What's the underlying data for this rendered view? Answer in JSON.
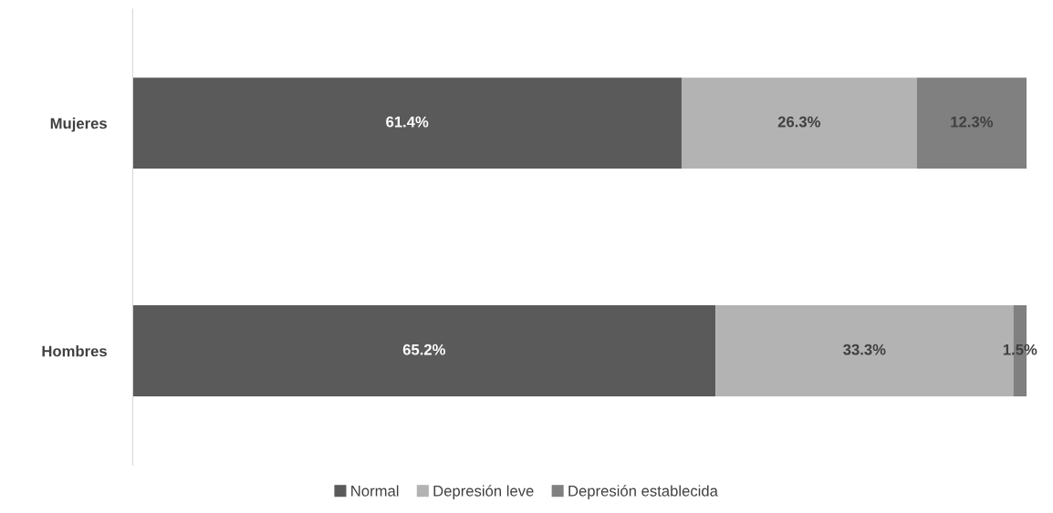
{
  "chart_data": {
    "type": "bar",
    "orientation": "horizontal",
    "stacked": true,
    "categories": [
      "Mujeres",
      "Hombres"
    ],
    "series": [
      {
        "name": "Normal",
        "color": "#5a5a5a",
        "values": [
          61.4,
          65.2
        ],
        "value_labels": [
          "61.4%",
          "65.2%"
        ]
      },
      {
        "name": "Depresión leve",
        "color": "#b3b3b3",
        "values": [
          26.3,
          33.3
        ],
        "value_labels": [
          "26.3%",
          "33.3%"
        ]
      },
      {
        "name": "Depresión establecida",
        "color": "#808080",
        "values": [
          12.3,
          1.5
        ],
        "value_labels": [
          "12.3%",
          "1.5%"
        ]
      }
    ],
    "legend": "bottom",
    "grid": false,
    "tick_labels": "y"
  }
}
